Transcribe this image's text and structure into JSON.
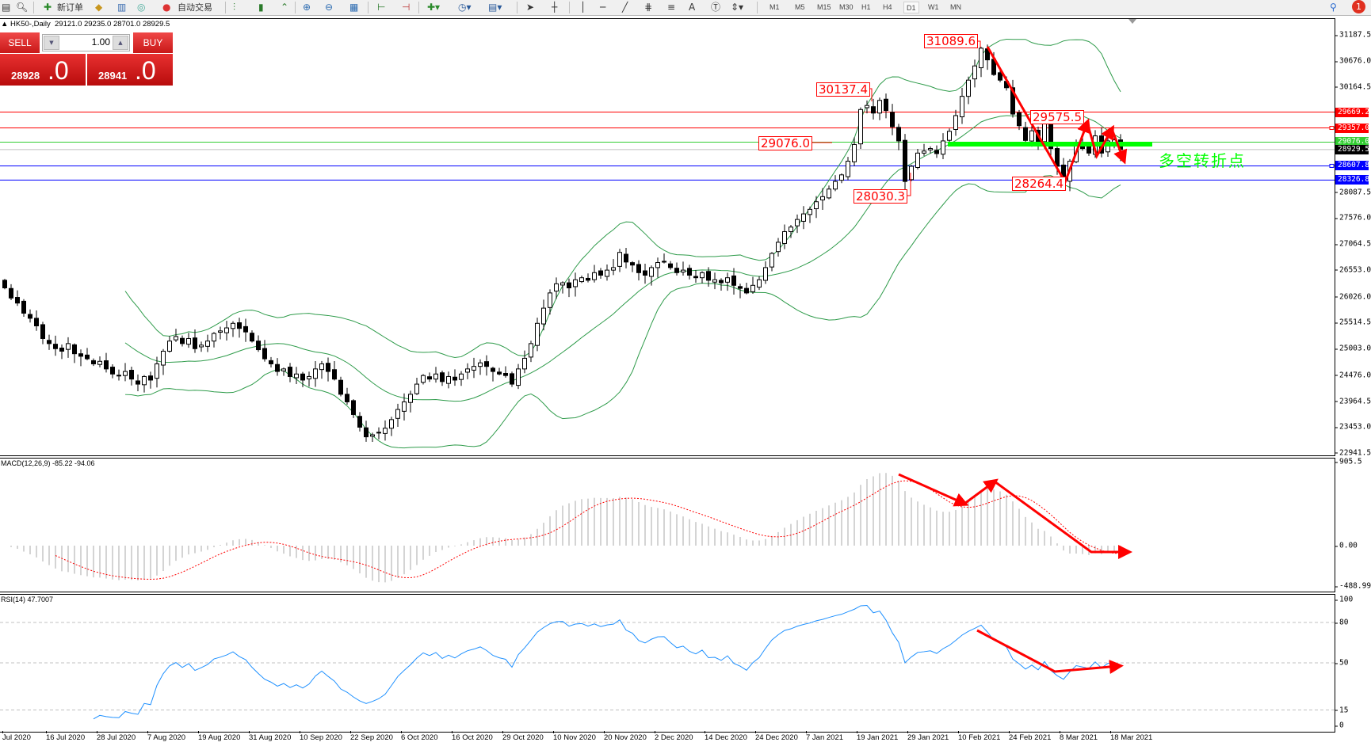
{
  "toolbar": {
    "new_order_label": "新订单",
    "auto_trade_label": "自动交易",
    "icons": [
      "new-chart",
      "print-preview",
      "new-order",
      "gold",
      "meta-editor",
      "signals",
      "auto-trading",
      "bar-chart",
      "candlesticks",
      "line-chart",
      "zoom-in",
      "zoom-out",
      "tile-windows",
      "chart-shift",
      "auto-scroll",
      "indicators",
      "periods",
      "templates",
      "cursor",
      "crosshair",
      "vertical-line",
      "horizontal-line",
      "trendline",
      "fibonacci",
      "channel",
      "text",
      "text-label",
      "arrows",
      "search",
      "notifications"
    ],
    "timeframes": [
      "M1",
      "M5",
      "M15",
      "M30",
      "H1",
      "H4",
      "D1",
      "W1",
      "MN"
    ],
    "selected_timeframe": "D1",
    "notification_count": "1"
  },
  "chart_header": {
    "symbol": "HK50-,Daily",
    "ohlc": "29121.0 29235.0 28701.0 28929.5"
  },
  "trade_panel": {
    "sell_label": "SELL",
    "buy_label": "BUY",
    "lot": "1.00",
    "sell_price": "28928",
    "sell_big": ".0",
    "buy_price": "28941",
    "buy_big": ".0"
  },
  "price_axis": [
    "31187.5",
    "30676.0",
    "30164.5",
    "28087.5",
    "27576.0",
    "27064.5",
    "26553.0",
    "26026.0",
    "25514.5",
    "25003.0",
    "24476.0",
    "23964.5",
    "23453.0",
    "22941.5"
  ],
  "levels": [
    {
      "value": 29669.2,
      "label": "29669.2",
      "color": "#ff0000"
    },
    {
      "value": 29357.0,
      "label": "29357.0",
      "color": "#ff0000"
    },
    {
      "value": 29076.0,
      "label": "29076.0",
      "color": "#32cd32"
    },
    {
      "value": 28929.5,
      "label": "28929.5",
      "color": "#000000",
      "line": "#c0c0c0"
    },
    {
      "value": 28607.8,
      "label": "28607.8",
      "color": "#0000ff"
    },
    {
      "value": 28326.8,
      "label": "28326.8",
      "color": "#0000ff"
    }
  ],
  "annotations": [
    "31089.6",
    "30137.4",
    "29076.0",
    "28030.3",
    "29575.5",
    "28264.4"
  ],
  "turning_point_text": "多空转折点",
  "macd": {
    "label": "MACD(12,26,9) -85.22 -94.06",
    "axis": [
      "905.5",
      "0.00",
      "-488.99"
    ]
  },
  "rsi": {
    "label": "RSI(14) 47.7007",
    "axis": [
      "100",
      "80",
      "50",
      "15",
      "0"
    ],
    "levels": [
      80,
      50,
      15
    ]
  },
  "time_axis": [
    "Jul 2020",
    "16 Jul 2020",
    "28 Jul 2020",
    "7 Aug 2020",
    "19 Aug 2020",
    "31 Aug 2020",
    "10 Sep 2020",
    "22 Sep 2020",
    "6 Oct 2020",
    "16 Oct 2020",
    "29 Oct 2020",
    "10 Nov 2020",
    "20 Nov 2020",
    "2 Dec 2020",
    "14 Dec 2020",
    "24 Dec 2020",
    "7 Jan 2021",
    "19 Jan 2021",
    "29 Jan 2021",
    "10 Feb 2021",
    "24 Feb 2021",
    "8 Mar 2021",
    "18 Mar 2021"
  ],
  "colors": {
    "up_body": "#ffffff",
    "down_body": "#000000",
    "bands": "#2e9b4a",
    "macd_hist": "#a8a8a8",
    "macd_signal": "#ff0000",
    "rsi": "#1e90ff",
    "arrows": "#ff0000",
    "support_bar": "#00ff00"
  },
  "chart_data": {
    "type": "candlestick",
    "symbol": "HK50-",
    "timeframe": "Daily",
    "ylim": [
      22941.5,
      31187.5
    ],
    "last_bar": {
      "open": 29121.0,
      "high": 29235.0,
      "low": 28701.0,
      "close": 28929.5
    },
    "closes": [
      26200,
      26000,
      25900,
      25700,
      25600,
      25450,
      25200,
      25100,
      25000,
      24950,
      25100,
      24900,
      24850,
      24800,
      24700,
      24750,
      24600,
      24500,
      24470,
      24550,
      24400,
      24300,
      24450,
      24380,
      24700,
      24950,
      25150,
      25240,
      25100,
      25200,
      25000,
      25070,
      25150,
      25300,
      25350,
      25410,
      25500,
      25400,
      25330,
      25150,
      24980,
      24800,
      24700,
      24550,
      24600,
      24450,
      24500,
      24380,
      24450,
      24600,
      24700,
      24550,
      24400,
      24100,
      23950,
      23700,
      23450,
      23260,
      23300,
      23350,
      23430,
      23600,
      23800,
      23950,
      24100,
      24300,
      24470,
      24400,
      24500,
      24350,
      24450,
      24380,
      24500,
      24600,
      24650,
      24720,
      24650,
      24550,
      24500,
      24470,
      24300,
      24600,
      24810,
      25100,
      25500,
      25800,
      26100,
      26280,
      26300,
      26200,
      26360,
      26400,
      26350,
      26500,
      26450,
      26550,
      26600,
      26900,
      26710,
      26650,
      26500,
      26450,
      26600,
      26700,
      26710,
      26600,
      26500,
      26550,
      26450,
      26400,
      26500,
      26350,
      26360,
      26300,
      26400,
      26250,
      26190,
      26100,
      26250,
      26360,
      26600,
      26880,
      27100,
      27310,
      27400,
      27550,
      27660,
      27750,
      27900,
      28000,
      28150,
      28300,
      28430,
      28700,
      29030,
      29720,
      29800,
      29650,
      29900,
      29700,
      29380,
      29100,
      28300,
      28600,
      28860,
      28900,
      28950,
      28850,
      29100,
      29290,
      29600,
      29980,
      30300,
      30580,
      30930,
      30700,
      30410,
      30300,
      30150,
      29630,
      29400,
      29110,
      29300,
      29050,
      29460,
      28950,
      28600,
      28340,
      28700,
      29030,
      28950,
      28860,
      29200,
      28860,
      29100,
      29121,
      28929.5
    ],
    "indicators": [
      "Bollinger Bands (20, 2)",
      "MACD(12,26,9)",
      "RSI(14)"
    ]
  }
}
